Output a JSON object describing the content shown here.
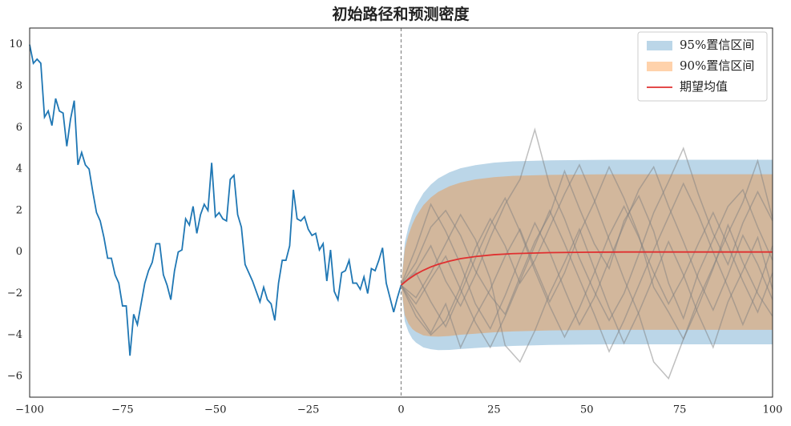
{
  "chart_data": {
    "type": "line",
    "title": "初始路径和预测密度",
    "xlim": [
      -100,
      100
    ],
    "ylim": [
      -7,
      10.8
    ],
    "xticks": [
      {
        "value": -100,
        "label": "−100"
      },
      {
        "value": -75,
        "label": "−75"
      },
      {
        "value": -50,
        "label": "−50"
      },
      {
        "value": -25,
        "label": "−25"
      },
      0,
      25,
      50,
      75,
      100
    ],
    "yticks": [
      {
        "value": -6,
        "label": "−6"
      },
      {
        "value": -4,
        "label": "−4"
      },
      {
        "value": -2,
        "label": "−2"
      },
      0,
      2,
      4,
      6,
      8,
      10
    ],
    "grid": false,
    "legend": "upper right",
    "vline": 0,
    "vline_color": "#888888",
    "x": [
      -100,
      -99,
      -98,
      -97,
      -96,
      -95,
      -94,
      -93,
      -92,
      -91,
      -90,
      -89,
      -88,
      -87,
      -86,
      -85,
      -84,
      -83,
      -82,
      -81,
      -80,
      -79,
      -78,
      -77,
      -76,
      -75,
      -74,
      -73,
      -72,
      -71,
      -70,
      -69,
      -68,
      -67,
      -66,
      -65,
      -64,
      -63,
      -62,
      -61,
      -60,
      -59,
      -58,
      -57,
      -56,
      -55,
      -54,
      -53,
      -52,
      -51,
      -50,
      -49,
      -48,
      -47,
      -46,
      -45,
      -44,
      -43,
      -42,
      -41,
      -40,
      -39,
      -38,
      -37,
      -36,
      -35,
      -34,
      -33,
      -32,
      -31,
      -30,
      -29,
      -28,
      -27,
      -26,
      -25,
      -24,
      -23,
      -22,
      -21,
      -20,
      -19,
      -18,
      -17,
      -16,
      -15,
      -14,
      -13,
      -12,
      -11,
      -10,
      -9,
      -8,
      -7,
      -6,
      -5,
      -4,
      -3,
      -2,
      -1,
      0
    ],
    "values": [
      10,
      9.1,
      9.3,
      9.1,
      6.5,
      6.8,
      6.1,
      7.4,
      6.8,
      6.7,
      5.1,
      6.4,
      7.3,
      4.2,
      4.8,
      4.2,
      4.0,
      2.9,
      1.9,
      1.5,
      0.7,
      -0.3,
      -0.3,
      -1.1,
      -1.5,
      -2.6,
      -2.6,
      -5.0,
      -3.0,
      -3.5,
      -2.5,
      -1.5,
      -0.9,
      -0.5,
      0.4,
      0.4,
      -1.1,
      -1.6,
      -2.3,
      -0.9,
      0.0,
      0.1,
      1.6,
      1.3,
      2.2,
      0.9,
      1.8,
      2.3,
      2.0,
      4.3,
      1.7,
      1.9,
      1.6,
      1.5,
      3.5,
      3.7,
      1.8,
      1.2,
      -0.6,
      -1.0,
      -1.4,
      -1.9,
      -2.4,
      -1.7,
      -2.3,
      -2.5,
      -3.3,
      -1.5,
      -0.4,
      -0.4,
      0.3,
      3.0,
      1.6,
      1.5,
      1.7,
      1.1,
      0.8,
      0.9,
      0.1,
      0.4,
      -1.4,
      0.1,
      -1.9,
      -2.3,
      -1.0,
      -0.9,
      -0.4,
      -1.5,
      -1.5,
      -1.8,
      -1.2,
      -2.0,
      -0.8,
      -0.9,
      -0.4,
      0.2,
      -1.5,
      -2.2,
      -2.9,
      -2.2,
      -1.6
    ],
    "color": "#1f77b4",
    "band_x": [
      0,
      1,
      2,
      3,
      4,
      6,
      8,
      10,
      13,
      16,
      20,
      25,
      30,
      40,
      50,
      60,
      70,
      80,
      90,
      100
    ],
    "bands": [
      {
        "name": "95%置信区间",
        "color": "#1f77b4",
        "upper": [
          -1.6,
          0.45,
          1.24,
          1.8,
          2.23,
          2.84,
          3.25,
          3.55,
          3.84,
          4.04,
          4.19,
          4.31,
          4.37,
          4.42,
          4.44,
          4.45,
          4.45,
          4.45,
          4.45,
          4.45
        ],
        "lower": [
          -1.6,
          -3.35,
          -3.86,
          -4.18,
          -4.37,
          -4.6,
          -4.69,
          -4.73,
          -4.72,
          -4.68,
          -4.63,
          -4.57,
          -4.53,
          -4.48,
          -4.46,
          -4.45,
          -4.45,
          -4.45,
          -4.45,
          -4.45
        ]
      },
      {
        "name": "90%置信区间",
        "color": "#ff7f0e",
        "upper": [
          -1.6,
          0.15,
          0.84,
          1.33,
          1.71,
          2.26,
          2.63,
          2.9,
          3.17,
          3.35,
          3.5,
          3.61,
          3.67,
          3.72,
          3.74,
          3.75,
          3.75,
          3.75,
          3.75,
          3.75
        ],
        "lower": [
          -1.6,
          -3.05,
          -3.46,
          -3.71,
          -3.85,
          -4.02,
          -4.07,
          -4.08,
          -4.05,
          -3.99,
          -3.94,
          -3.87,
          -3.83,
          -3.78,
          -3.76,
          -3.75,
          -3.75,
          -3.75,
          -3.75,
          -3.75
        ]
      }
    ],
    "mean": {
      "name": "期望均值",
      "color": "#e03030",
      "values": [
        -1.6,
        -1.45,
        -1.31,
        -1.19,
        -1.07,
        -0.88,
        -0.72,
        -0.59,
        -0.44,
        -0.32,
        -0.22,
        -0.13,
        -0.08,
        -0.03,
        -0.01,
        0,
        0,
        0,
        0,
        0
      ]
    },
    "sample_color": "#808080",
    "sample_x": [
      0,
      4,
      8,
      12,
      16,
      20,
      24,
      28,
      32,
      36,
      40,
      44,
      48,
      52,
      56,
      60,
      64,
      68,
      72,
      76,
      80,
      84,
      88,
      92,
      96,
      100
    ],
    "samples": [
      [
        -1.6,
        -0.5,
        1.2,
        2.0,
        0.8,
        -0.9,
        -2.1,
        -3.0,
        -1.2,
        0.5,
        1.8,
        3.9,
        2.1,
        0.4,
        -0.8,
        1.5,
        2.7,
        1.0,
        -1.5,
        -3.2,
        -1.0,
        0.6,
        2.2,
        3.0,
        1.2,
        -0.4
      ],
      [
        -1.6,
        -2.8,
        -3.9,
        -2.5,
        -4.6,
        -3.1,
        -1.8,
        -0.2,
        1.1,
        -0.7,
        -2.4,
        -1.0,
        0.9,
        2.4,
        4.1,
        2.6,
        0.8,
        -1.7,
        -2.9,
        -4.2,
        -2.6,
        -0.8,
        1.3,
        -0.5,
        -2.0,
        -3.1
      ],
      [
        -1.6,
        -0.9,
        0.3,
        -1.4,
        -2.6,
        -1.1,
        0.7,
        2.3,
        3.5,
        5.9,
        3.2,
        1.6,
        -0.3,
        -1.9,
        -3.3,
        -2.0,
        -0.1,
        1.9,
        3.4,
        5.0,
        2.8,
        0.9,
        -0.6,
        1.4,
        2.9,
        1.5
      ],
      [
        -1.6,
        -2.2,
        -1.0,
        0.4,
        1.8,
        0.6,
        -1.3,
        -4.5,
        -5.3,
        -3.8,
        -2.0,
        -0.5,
        1.1,
        -0.8,
        -2.7,
        -4.4,
        -2.9,
        -1.2,
        0.5,
        -1.1,
        -3.0,
        -4.6,
        -2.4,
        -0.9,
        0.7,
        -1.8
      ],
      [
        -1.6,
        -3.1,
        -4.0,
        -3.3,
        -1.7,
        0.2,
        1.6,
        0.3,
        -1.5,
        -0.4,
        1.2,
        2.8,
        4.2,
        2.5,
        0.6,
        -1.3,
        -3.0,
        -5.3,
        -6.1,
        -4.2,
        -2.3,
        -0.7,
        0.9,
        2.4,
        4.4,
        1.6
      ],
      [
        -1.6,
        0.2,
        2.3,
        1.0,
        -0.6,
        -2.5,
        -3.7,
        -2.1,
        -0.3,
        1.4,
        0.0,
        -1.8,
        -3.5,
        -2.2,
        -0.4,
        1.3,
        3.0,
        4.1,
        2.2,
        0.5,
        -1.3,
        -2.8,
        -1.1,
        0.8,
        -0.6,
        -2.3
      ],
      [
        -1.6,
        -1.0,
        -2.4,
        -3.6,
        -2.0,
        -0.3,
        1.3,
        2.6,
        1.0,
        -0.9,
        -2.6,
        -4.1,
        -2.7,
        -1.0,
        0.8,
        2.2,
        0.7,
        -1.0,
        -2.5,
        -1.2,
        0.4,
        1.9,
        0.3,
        -1.4,
        -2.9,
        -1.0
      ],
      [
        -1.6,
        -2.5,
        -1.3,
        -0.2,
        -1.8,
        -3.4,
        -4.6,
        -3.1,
        -1.4,
        0.3,
        2.0,
        0.4,
        -1.3,
        -3.0,
        -4.8,
        -3.3,
        -1.6,
        0.1,
        1.7,
        3.3,
        1.8,
        0.0,
        -1.7,
        -3.5,
        -1.8,
        0.3
      ]
    ]
  }
}
